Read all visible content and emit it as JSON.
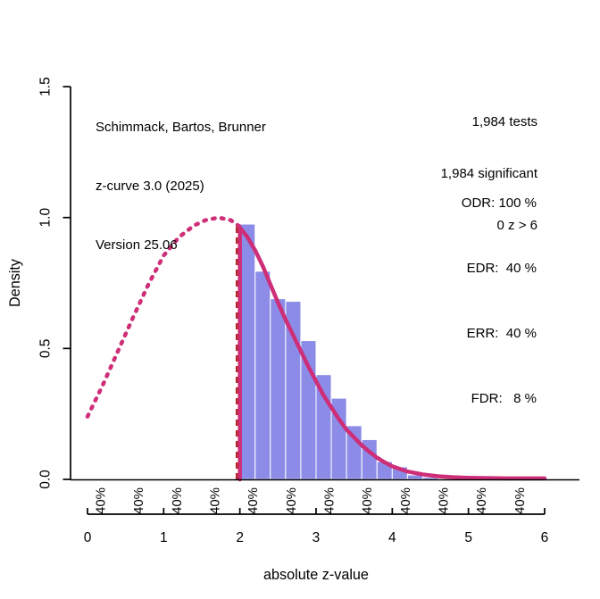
{
  "annotations": {
    "method": {
      "line1": "Schimmack, Bartos, Brunner",
      "line2": "z-curve 3.0 (2025)",
      "line3": "Version 25.06"
    },
    "tests": {
      "line1": "1,984 tests",
      "line2": "1,984 significant",
      "line3": "0 z > 6"
    },
    "estimates": {
      "odr": "ODR: 100 %",
      "edr": "EDR:  40 %",
      "err": "ERR:  40 %",
      "fdr": "FDR:   8 %"
    }
  },
  "chart_data": {
    "type": "bar",
    "title": "",
    "xlabel": "absolute z-value",
    "ylabel": "Density",
    "xlim": [
      0,
      6
    ],
    "ylim": [
      0,
      1.5
    ],
    "grid": false,
    "x_ticks": [
      {
        "value": 0,
        "label": "0"
      },
      {
        "value": 1,
        "label": "1"
      },
      {
        "value": 2,
        "label": "2"
      },
      {
        "value": 3,
        "label": "3"
      },
      {
        "value": 4,
        "label": "4"
      },
      {
        "value": 5,
        "label": "5"
      },
      {
        "value": 6,
        "label": "6"
      }
    ],
    "y_ticks": [
      {
        "value": 0.0,
        "label": "0.0"
      },
      {
        "value": 0.5,
        "label": "0.5"
      },
      {
        "value": 1.0,
        "label": "1.0"
      },
      {
        "value": 1.5,
        "label": "1.5"
      }
    ],
    "histogram": {
      "start": 2.0,
      "bin_width": 0.2,
      "heights": [
        0.975,
        0.795,
        0.69,
        0.68,
        0.53,
        0.4,
        0.31,
        0.205,
        0.152,
        0.068,
        0.048,
        0.017,
        0.008
      ]
    },
    "significance_line_z": 1.96,
    "curve_dotted": [
      [
        0.0,
        0.24
      ],
      [
        0.2,
        0.36
      ],
      [
        0.4,
        0.49
      ],
      [
        0.6,
        0.62
      ],
      [
        0.8,
        0.745
      ],
      [
        1.0,
        0.855
      ],
      [
        1.2,
        0.925
      ],
      [
        1.4,
        0.97
      ],
      [
        1.55,
        0.99
      ],
      [
        1.72,
        1.0
      ],
      [
        1.88,
        0.99
      ],
      [
        2.0,
        0.965
      ]
    ],
    "curve_solid": [
      [
        2.0,
        0.962
      ],
      [
        2.1,
        0.925
      ],
      [
        2.2,
        0.875
      ],
      [
        2.3,
        0.815
      ],
      [
        2.4,
        0.745
      ],
      [
        2.5,
        0.675
      ],
      [
        2.6,
        0.61
      ],
      [
        2.7,
        0.55
      ],
      [
        2.8,
        0.49
      ],
      [
        2.9,
        0.43
      ],
      [
        3.0,
        0.375
      ],
      [
        3.1,
        0.32
      ],
      [
        3.2,
        0.275
      ],
      [
        3.3,
        0.23
      ],
      [
        3.4,
        0.19
      ],
      [
        3.5,
        0.16
      ],
      [
        3.6,
        0.13
      ],
      [
        3.7,
        0.105
      ],
      [
        3.8,
        0.083
      ],
      [
        3.9,
        0.065
      ],
      [
        4.0,
        0.05
      ],
      [
        4.2,
        0.03
      ],
      [
        4.4,
        0.019
      ],
      [
        4.6,
        0.012
      ],
      [
        4.8,
        0.008
      ],
      [
        5.0,
        0.006
      ],
      [
        5.5,
        0.004
      ],
      [
        6.0,
        0.004
      ]
    ],
    "power_labels": {
      "label": "40%",
      "z_positions": [
        0.17,
        0.67,
        1.17,
        1.67,
        2.17,
        2.67,
        3.17,
        3.67,
        4.17,
        4.67,
        5.17,
        5.67
      ]
    },
    "colors": {
      "histogram_fill": "#8C8CE8",
      "histogram_border": "#FFFFFF",
      "curve": "#CE2E78",
      "significance_line": "#B5282B",
      "text": "#000000"
    }
  }
}
